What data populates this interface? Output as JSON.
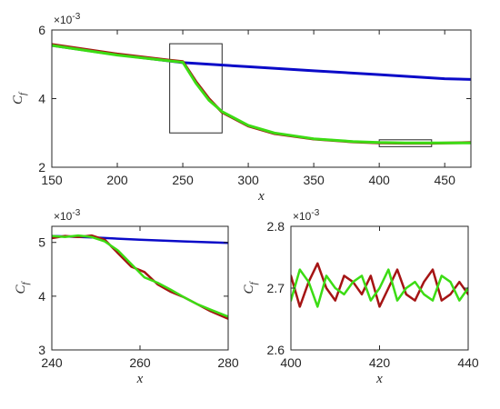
{
  "colors": {
    "laminar": "#0a0ac8",
    "red": "#a51414",
    "green": "#3cdc14",
    "axis": "#262626"
  },
  "chart_data": [
    {
      "type": "line",
      "xlim": [
        150,
        470
      ],
      "ylim": [
        2,
        6
      ],
      "xticks": [
        "150",
        "200",
        "250",
        "300",
        "350",
        "400",
        "450"
      ],
      "yticks": [
        "2",
        "4",
        "6"
      ],
      "multiplier": "×10",
      "exponent": "-3",
      "xlabel": "x",
      "ylabel": "C",
      "ylabel_sub": "f",
      "grid": false,
      "zoom_boxes": [
        {
          "x": [
            240,
            280
          ],
          "y": [
            3.0,
            5.6
          ]
        },
        {
          "x": [
            400,
            440
          ],
          "y": [
            2.6,
            2.8
          ]
        }
      ],
      "series": [
        {
          "color": "blue",
          "x": [
            150,
            200,
            250,
            300,
            350,
            400,
            450,
            470
          ],
          "y": [
            5.55,
            5.28,
            5.05,
            4.93,
            4.81,
            4.7,
            4.58,
            4.56
          ]
        },
        {
          "color": "red",
          "x": [
            150,
            200,
            240,
            250,
            260,
            270,
            280,
            300,
            320,
            350,
            380,
            400,
            420,
            440,
            470
          ],
          "y": [
            5.58,
            5.3,
            5.12,
            5.08,
            4.5,
            4.0,
            3.6,
            3.2,
            2.98,
            2.82,
            2.74,
            2.71,
            2.7,
            2.7,
            2.72
          ]
        },
        {
          "color": "green",
          "x": [
            150,
            200,
            240,
            250,
            260,
            270,
            280,
            300,
            320,
            350,
            380,
            400,
            420,
            440,
            470
          ],
          "y": [
            5.55,
            5.27,
            5.1,
            5.06,
            4.45,
            3.95,
            3.62,
            3.22,
            3.0,
            2.83,
            2.75,
            2.72,
            2.71,
            2.71,
            2.71
          ]
        }
      ]
    },
    {
      "type": "line",
      "xlim": [
        240,
        280
      ],
      "ylim": [
        3,
        5.3
      ],
      "xticks": [
        "240",
        "260",
        "280"
      ],
      "yticks": [
        "3",
        "4",
        "5"
      ],
      "multiplier": "×10",
      "exponent": "-3",
      "xlabel": "x",
      "ylabel": "C",
      "ylabel_sub": "f",
      "grid": false,
      "series": [
        {
          "color": "blue",
          "x": [
            240,
            250,
            260,
            270,
            280
          ],
          "y": [
            5.12,
            5.09,
            5.05,
            5.02,
            4.99
          ]
        },
        {
          "color": "red",
          "x": [
            240,
            243,
            246,
            249,
            252,
            255,
            258,
            261,
            264,
            267,
            270,
            273,
            276,
            280
          ],
          "y": [
            5.08,
            5.12,
            5.1,
            5.13,
            5.05,
            4.8,
            4.55,
            4.45,
            4.22,
            4.08,
            3.98,
            3.85,
            3.72,
            3.58
          ]
        },
        {
          "color": "green",
          "x": [
            240,
            243,
            246,
            249,
            252,
            255,
            258,
            261,
            264,
            267,
            270,
            273,
            276,
            280
          ],
          "y": [
            5.12,
            5.1,
            5.13,
            5.1,
            5.02,
            4.85,
            4.6,
            4.35,
            4.25,
            4.12,
            3.98,
            3.85,
            3.75,
            3.62
          ]
        }
      ]
    },
    {
      "type": "line",
      "xlim": [
        400,
        440
      ],
      "ylim": [
        2.6,
        2.8
      ],
      "xticks": [
        "400",
        "420",
        "440"
      ],
      "yticks": [
        "2.6",
        "2.7",
        "2.8"
      ],
      "multiplier": "×10",
      "exponent": "-3",
      "xlabel": "x",
      "ylabel": "C",
      "ylabel_sub": "f",
      "grid": false,
      "series": [
        {
          "color": "red",
          "x": [
            400,
            402,
            404,
            406,
            408,
            410,
            412,
            414,
            416,
            418,
            420,
            422,
            424,
            426,
            428,
            430,
            432,
            434,
            436,
            438,
            440
          ],
          "y": [
            2.72,
            2.67,
            2.71,
            2.74,
            2.7,
            2.68,
            2.72,
            2.71,
            2.69,
            2.72,
            2.67,
            2.7,
            2.73,
            2.69,
            2.68,
            2.71,
            2.73,
            2.68,
            2.69,
            2.71,
            2.69
          ]
        },
        {
          "color": "green",
          "x": [
            400,
            402,
            404,
            406,
            408,
            410,
            412,
            414,
            416,
            418,
            420,
            422,
            424,
            426,
            428,
            430,
            432,
            434,
            436,
            438,
            440
          ],
          "y": [
            2.68,
            2.73,
            2.71,
            2.67,
            2.72,
            2.7,
            2.69,
            2.71,
            2.72,
            2.68,
            2.7,
            2.73,
            2.68,
            2.7,
            2.71,
            2.69,
            2.68,
            2.72,
            2.71,
            2.68,
            2.7
          ]
        }
      ]
    }
  ]
}
